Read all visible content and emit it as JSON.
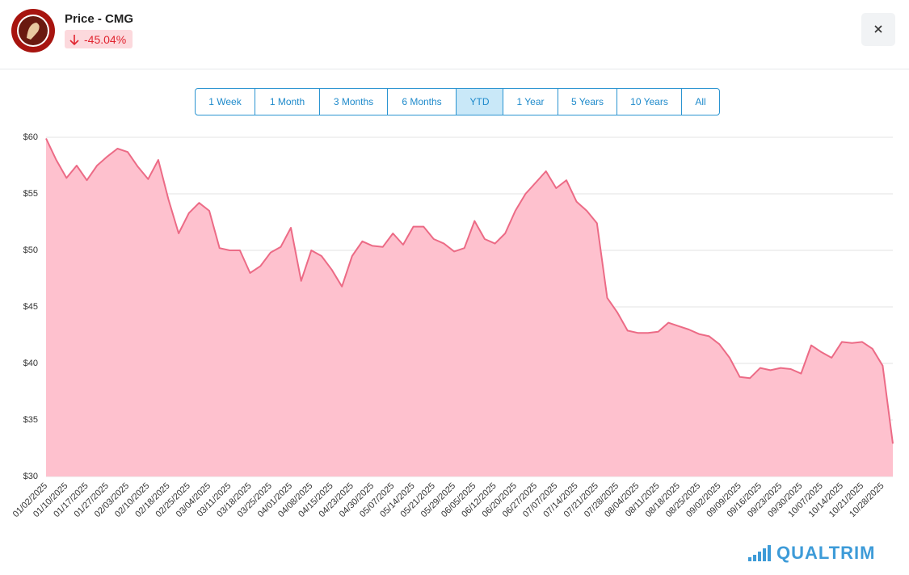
{
  "header": {
    "title": "Price - CMG",
    "change": "-45.04%"
  },
  "range_buttons": {
    "labels": [
      "1 Week",
      "1 Month",
      "3 Months",
      "6 Months",
      "YTD",
      "1 Year",
      "5 Years",
      "10 Years",
      "All"
    ],
    "selected": 4
  },
  "brand": "QUALTRIM",
  "chart_data": {
    "type": "area",
    "color": "#ec6b86",
    "fill": "#fec1ce",
    "grid": true,
    "categories": [
      "01/02/2025",
      null,
      "01/10/2025",
      null,
      "01/17/2025",
      null,
      "01/27/2025",
      null,
      "02/03/2025",
      null,
      "02/10/2025",
      null,
      "02/18/2025",
      null,
      "02/25/2025",
      null,
      "03/04/2025",
      null,
      "03/11/2025",
      null,
      "03/18/2025",
      null,
      "03/25/2025",
      null,
      "04/01/2025",
      null,
      "04/08/2025",
      null,
      "04/15/2025",
      null,
      "04/23/2025",
      null,
      "04/30/2025",
      null,
      "05/07/2025",
      null,
      "05/14/2025",
      null,
      "05/21/2025",
      null,
      "05/29/2025",
      null,
      "06/05/2025",
      null,
      "06/12/2025",
      null,
      "06/20/2025",
      null,
      "06/27/2025",
      null,
      "07/07/2025",
      null,
      "07/14/2025",
      null,
      "07/21/2025",
      null,
      "07/28/2025",
      null,
      "08/04/2025",
      null,
      "08/11/2025",
      null,
      "08/18/2025",
      null,
      "08/25/2025",
      null,
      "09/02/2025",
      null,
      "09/09/2025",
      null,
      "09/16/2025",
      null,
      "09/23/2025",
      null,
      "09/30/2025",
      null,
      "10/07/2025",
      null,
      "10/14/2025",
      null,
      "10/21/2025",
      null,
      "10/28/2025",
      null
    ],
    "values": [
      59.9,
      58.0,
      56.4,
      57.5,
      56.2,
      57.5,
      58.3,
      59.0,
      58.7,
      57.4,
      56.3,
      58.0,
      54.5,
      51.5,
      53.3,
      54.2,
      53.5,
      50.2,
      50.0,
      50.0,
      48.0,
      48.6,
      49.8,
      50.3,
      52.0,
      47.3,
      50.0,
      49.5,
      48.3,
      46.8,
      49.5,
      50.8,
      50.4,
      50.3,
      51.5,
      50.5,
      52.1,
      52.1,
      51.0,
      50.6,
      49.9,
      50.2,
      52.6,
      51.0,
      50.6,
      51.5,
      53.5,
      55.0,
      56.0,
      57.0,
      55.5,
      56.2,
      54.3,
      53.5,
      52.4,
      45.8,
      44.5,
      42.9,
      42.7,
      42.7,
      42.8,
      43.6,
      43.3,
      43.0,
      42.6,
      42.4,
      41.7,
      40.5,
      38.8,
      38.7,
      39.6,
      39.4,
      39.6,
      39.5,
      39.1,
      41.6,
      41.0,
      40.5,
      41.9,
      41.8,
      41.9,
      41.3,
      39.8,
      32.9
    ],
    "ylim": [
      30,
      60
    ],
    "yticks": [
      {
        "value": 30,
        "label": "$30"
      },
      {
        "value": 35,
        "label": "$35"
      },
      {
        "value": 40,
        "label": "$40"
      },
      {
        "value": 45,
        "label": "$45"
      },
      {
        "value": 50,
        "label": "$50"
      },
      {
        "value": 55,
        "label": "$55"
      },
      {
        "value": 60,
        "label": "$60"
      }
    ]
  }
}
